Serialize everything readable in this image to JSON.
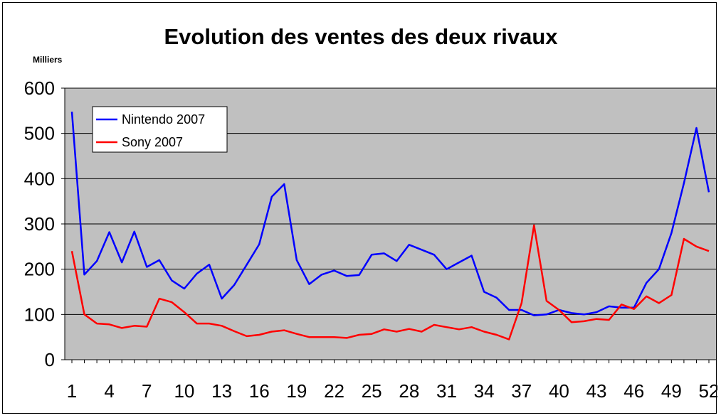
{
  "chart_data": {
    "type": "line",
    "title": "Evolution des ventes des deux rivaux",
    "unit_label": "Milliers",
    "xlabel": "",
    "ylabel": "",
    "ylim": [
      0,
      600
    ],
    "y_ticks": [
      0,
      100,
      200,
      300,
      400,
      500,
      600
    ],
    "x_range": [
      1,
      52
    ],
    "x_tick_labels": [
      "1",
      "4",
      "7",
      "10",
      "13",
      "16",
      "19",
      "22",
      "25",
      "28",
      "31",
      "34",
      "37",
      "40",
      "43",
      "46",
      "49",
      "52"
    ],
    "grid": true,
    "legend_position": "top-left",
    "colors": {
      "plot_background": "#c0c0c0",
      "gridline": "#000000"
    },
    "series": [
      {
        "name": "Nintendo 2007",
        "color": "#0000ff",
        "values": [
          548,
          188,
          218,
          282,
          215,
          283,
          205,
          220,
          175,
          157,
          190,
          210,
          135,
          165,
          210,
          255,
          360,
          388,
          220,
          167,
          188,
          197,
          185,
          187,
          232,
          235,
          218,
          254,
          243,
          232,
          200,
          215,
          230,
          150,
          137,
          110,
          110,
          98,
          100,
          110,
          103,
          100,
          105,
          118,
          115,
          115,
          170,
          200,
          280,
          390,
          512,
          370
        ]
      },
      {
        "name": "Sony 2007",
        "color": "#ff0000",
        "values": [
          240,
          100,
          80,
          78,
          70,
          75,
          73,
          135,
          127,
          105,
          80,
          80,
          75,
          63,
          52,
          55,
          62,
          65,
          57,
          50,
          50,
          50,
          48,
          55,
          57,
          67,
          62,
          68,
          62,
          77,
          72,
          67,
          72,
          62,
          55,
          45,
          125,
          297,
          130,
          110,
          83,
          85,
          90,
          88,
          122,
          112,
          140,
          125,
          143,
          267,
          250,
          240
        ]
      }
    ]
  }
}
